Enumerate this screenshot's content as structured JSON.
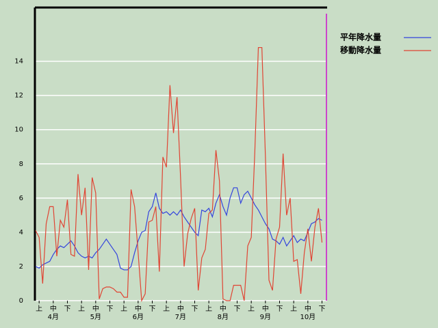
{
  "chart_data": {
    "type": "line",
    "categories": [
      null,
      "上",
      null,
      null,
      null,
      "中",
      null,
      null,
      null,
      "下",
      null,
      null,
      null,
      "上",
      null,
      null,
      null,
      "中",
      null,
      null,
      null,
      "下",
      null,
      null,
      null,
      "上",
      null,
      null,
      null,
      "中",
      null,
      null,
      null,
      "下",
      null,
      null,
      null,
      "上",
      null,
      null,
      null,
      "中",
      null,
      null,
      null,
      "下",
      null,
      null,
      null,
      "上",
      null,
      null,
      null,
      "中",
      null,
      null,
      null,
      "下",
      null,
      null,
      null,
      "上",
      null,
      null,
      null,
      "中",
      null,
      null,
      null,
      "下",
      null,
      null,
      null,
      "上",
      null,
      null,
      null,
      "中",
      null,
      null,
      null,
      "下"
    ],
    "month_labels": [
      "4月",
      "5月",
      "6月",
      "7月",
      "8月",
      "9月",
      "10月"
    ],
    "series": [
      {
        "name": "平年降水量",
        "color": "#3344dd",
        "values": [
          2.0,
          1.9,
          2.1,
          2.2,
          2.3,
          2.7,
          3.0,
          3.2,
          3.1,
          3.3,
          3.5,
          3.2,
          2.8,
          2.6,
          2.5,
          2.6,
          2.5,
          2.8,
          3.0,
          3.3,
          3.6,
          3.3,
          3.0,
          2.7,
          1.9,
          1.8,
          1.8,
          2.0,
          2.8,
          3.5,
          4.0,
          4.1,
          5.2,
          5.5,
          6.3,
          5.4,
          5.1,
          5.2,
          5.0,
          5.2,
          5.0,
          5.3,
          4.9,
          4.6,
          4.3,
          4.0,
          3.8,
          5.3,
          5.2,
          5.4,
          4.9,
          5.7,
          6.2,
          5.5,
          5.0,
          6.0,
          6.6,
          6.6,
          5.7,
          6.2,
          6.4,
          6.0,
          5.6,
          5.3,
          4.9,
          4.5,
          4.2,
          3.6,
          3.5,
          3.3,
          3.7,
          3.2,
          3.5,
          3.8,
          3.4,
          3.6,
          3.5,
          4.0,
          4.5,
          4.6,
          4.8,
          4.7
        ]
      },
      {
        "name": "移動降水量",
        "color": "#e04433",
        "values": [
          4.1,
          3.7,
          1.0,
          4.5,
          5.5,
          5.5,
          2.6,
          4.7,
          4.3,
          5.9,
          2.7,
          2.6,
          7.4,
          5.0,
          6.6,
          1.8,
          7.2,
          6.3,
          0.1,
          0.7,
          0.8,
          0.8,
          0.7,
          0.5,
          0.5,
          0.2,
          0.2,
          6.5,
          5.5,
          2.8,
          0,
          0.4,
          4.6,
          4.7,
          5.5,
          1.7,
          8.4,
          7.8,
          12.6,
          9.8,
          11.9,
          7.2,
          2.0,
          3.9,
          4.8,
          5.4,
          0.6,
          2.5,
          3.0,
          5.1,
          5.3,
          8.8,
          7.0,
          0.1,
          0,
          0,
          0.9,
          0.9,
          0.9,
          0,
          3.2,
          3.7,
          8.7,
          14.8,
          14.8,
          8.4,
          1.2,
          0.6,
          3.6,
          4.3,
          8.6,
          5.0,
          6.0,
          2.3,
          2.4,
          0.4,
          2.8,
          4.2,
          2.3,
          4.3,
          5.4,
          3.4
        ]
      }
    ],
    "ylim": [
      0,
      17.1
    ],
    "yticks": [
      0,
      2,
      4,
      6,
      8,
      10,
      12,
      14
    ],
    "grid": true
  }
}
